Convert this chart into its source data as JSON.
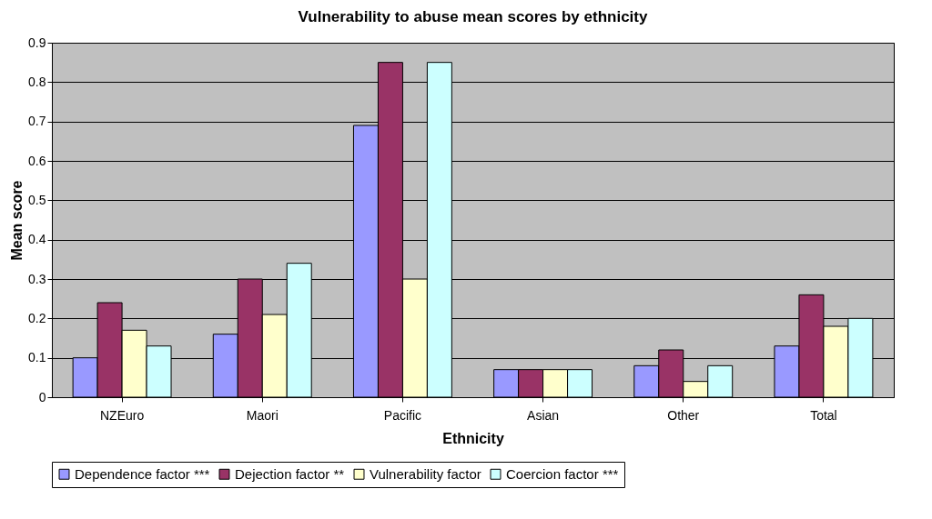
{
  "chart_data": {
    "type": "bar",
    "title": "Vulnerability to abuse mean scores by ethnicity",
    "xlabel": "Ethnicity",
    "ylabel": "Mean score",
    "categories": [
      "NZEuro",
      "Maori",
      "Pacific",
      "Asian",
      "Other",
      "Total"
    ],
    "series": [
      {
        "name": "Dependence factor ***",
        "color": "#9999ff",
        "values": [
          0.1,
          0.16,
          0.69,
          0.07,
          0.08,
          0.13
        ]
      },
      {
        "name": "Dejection factor **",
        "color": "#993366",
        "values": [
          0.24,
          0.3,
          0.85,
          0.07,
          0.12,
          0.26
        ]
      },
      {
        "name": "Vulnerability factor",
        "color": "#ffffcc",
        "values": [
          0.17,
          0.21,
          0.3,
          0.07,
          0.04,
          0.18
        ]
      },
      {
        "name": "Coercion factor ***",
        "color": "#ccffff",
        "values": [
          0.13,
          0.34,
          0.85,
          0.07,
          0.08,
          0.2
        ]
      }
    ],
    "ylim": [
      0,
      0.9
    ],
    "yticks": [
      0,
      0.1,
      0.2,
      0.3,
      0.4,
      0.5,
      0.6,
      0.7,
      0.8,
      0.9
    ],
    "grid": "y",
    "legend": "bottom"
  }
}
